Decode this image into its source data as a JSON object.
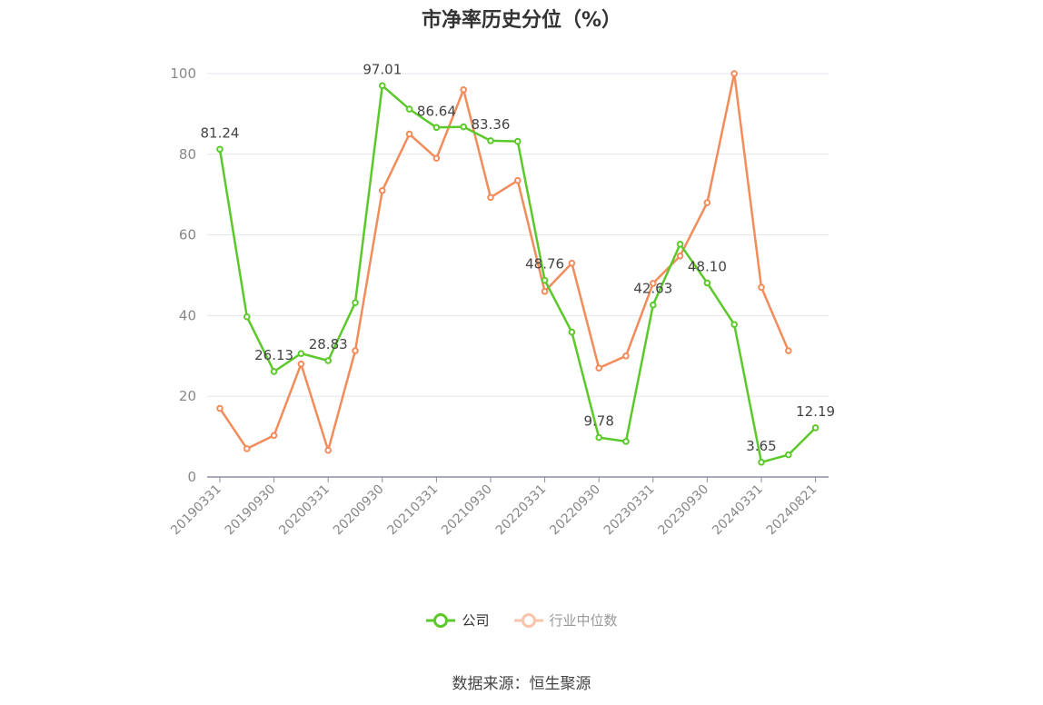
{
  "title": "市净率历史分位（%）",
  "source": "数据来源：恒生聚源",
  "chart_data": {
    "type": "line",
    "categories": [
      "20190331",
      "20190630",
      "20190930",
      "20191231",
      "20200331",
      "20200630",
      "20200930",
      "20201231",
      "20210331",
      "20210630",
      "20210930",
      "20211231",
      "20220331",
      "20220630",
      "20220930",
      "20221231",
      "20230331",
      "20230630",
      "20230930",
      "20231231",
      "20240331",
      "20240630",
      "20240821"
    ],
    "x_tick_labels": [
      "20190331",
      "20190930",
      "20200331",
      "20200930",
      "20210331",
      "20210930",
      "20220331",
      "20220930",
      "20230331",
      "20230930",
      "20240331",
      "20240821"
    ],
    "ylim": [
      0,
      100
    ],
    "y_ticks": [
      0,
      20,
      40,
      60,
      80,
      100
    ],
    "grid": true,
    "legend_position": "bottom",
    "series": [
      {
        "name": "公司",
        "color": "#5cc92b",
        "values": [
          81.24,
          39.7,
          26.13,
          30.6,
          28.83,
          43.2,
          97.01,
          91.2,
          86.64,
          86.8,
          83.36,
          83.2,
          48.76,
          35.9,
          9.78,
          8.8,
          42.63,
          57.7,
          48.1,
          37.8,
          3.65,
          5.5,
          12.19
        ],
        "labels": {
          "0": "81.24",
          "2": "26.13",
          "4": "28.83",
          "6": "97.01",
          "8": "86.64",
          "10": "83.36",
          "12": "48.76",
          "14": "9.78",
          "16": "42.63",
          "18": "48.10",
          "20": "3.65",
          "22": "12.19"
        }
      },
      {
        "name": "行业中位数",
        "color": "#f28c5b",
        "values": [
          17.0,
          7.0,
          10.3,
          28.0,
          6.6,
          31.3,
          71.0,
          85.0,
          79.0,
          96.0,
          69.3,
          73.5,
          46.0,
          53.0,
          27.0,
          30.0,
          48.0,
          54.8,
          68.0,
          100.0,
          47.0,
          31.3,
          null
        ]
      }
    ]
  }
}
